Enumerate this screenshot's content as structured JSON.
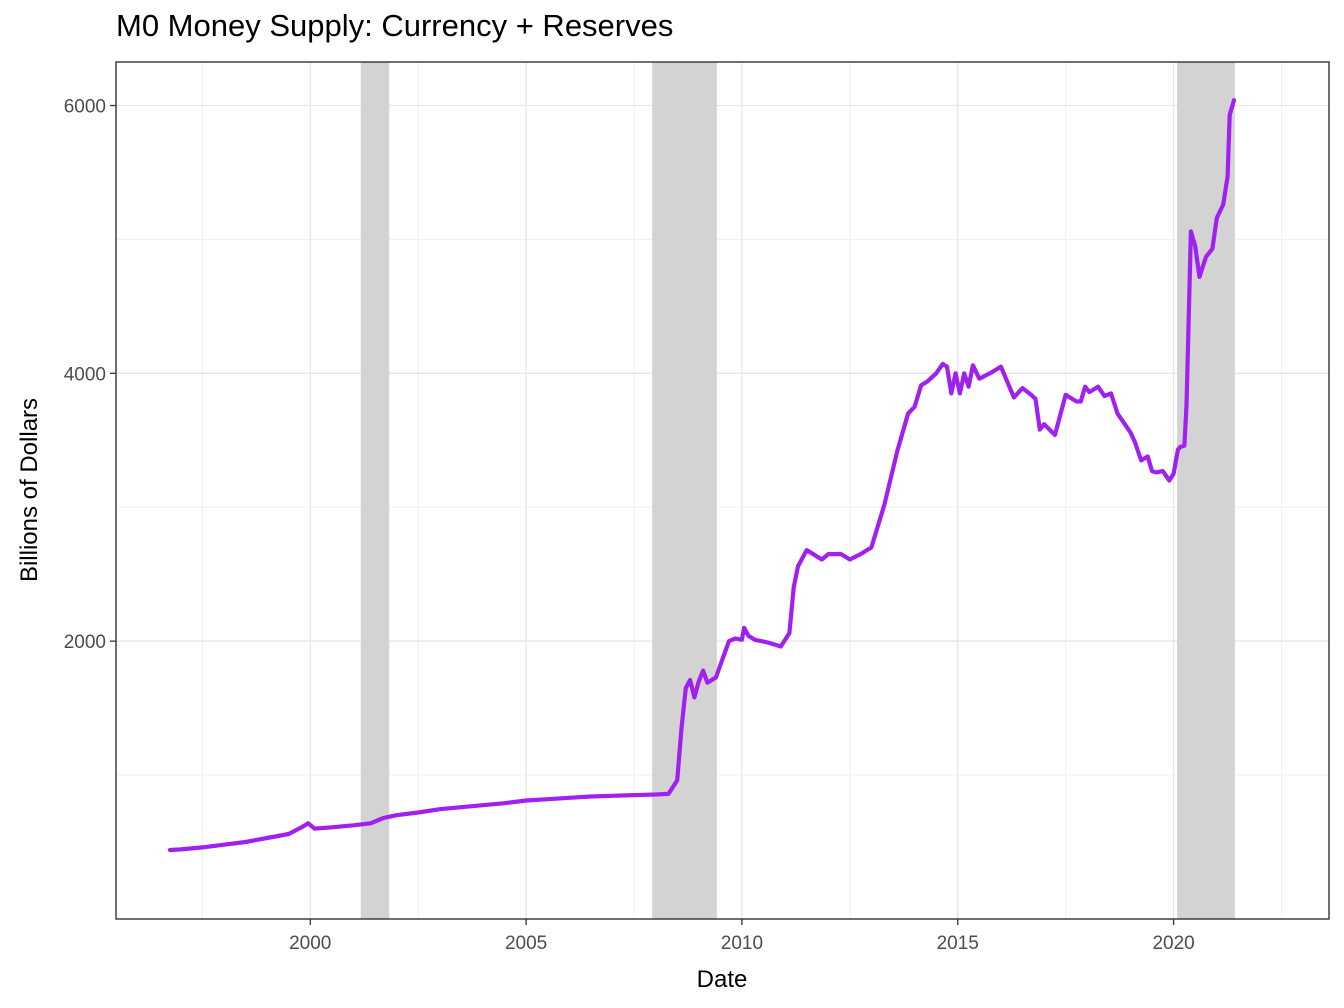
{
  "chart_data": {
    "type": "line",
    "title": "M0 Money Supply: Currency + Reserves",
    "xlabel": "Date",
    "ylabel": "Billions of Dollars",
    "xlim": [
      1995.5,
      2023.6
    ],
    "ylim": [
      -75,
      6325
    ],
    "x_ticks": [
      2000,
      2005,
      2010,
      2015,
      2020
    ],
    "y_ticks": [
      2000,
      4000,
      6000
    ],
    "x_tick_labels": [
      "2000",
      "2005",
      "2010",
      "2015",
      "2020"
    ],
    "y_tick_labels": [
      "2000",
      "4000",
      "6000"
    ],
    "grid": true,
    "line_color": "#a020f0",
    "recession_color": "#d3d3d3",
    "recessions": [
      {
        "start": 2001.17,
        "end": 2001.83
      },
      {
        "start": 2007.92,
        "end": 2009.42
      },
      {
        "start": 2020.08,
        "end": 2021.42
      }
    ],
    "series": [
      {
        "x": [
          1996.75,
          1997.0,
          1997.5,
          1998.0,
          1998.5,
          1999.0,
          1999.5,
          1999.8,
          1999.95,
          2000.1,
          2000.5,
          2001.0,
          2001.4,
          2001.7,
          2002.0,
          2002.5,
          2003.0,
          2003.5,
          2004.0,
          2004.5,
          2005.0,
          2005.5,
          2006.0,
          2006.5,
          2007.0,
          2007.5,
          2008.0,
          2008.3,
          2008.5,
          2008.6,
          2008.7,
          2008.8,
          2008.9,
          2009.0,
          2009.1,
          2009.2,
          2009.4,
          2009.5,
          2009.7,
          2009.85,
          2010.0,
          2010.05,
          2010.15,
          2010.3,
          2010.6,
          2010.9,
          2011.1,
          2011.2,
          2011.3,
          2011.5,
          2011.7,
          2011.85,
          2012.0,
          2012.3,
          2012.5,
          2012.75,
          2013.0,
          2013.3,
          2013.6,
          2013.85,
          2014.0,
          2014.15,
          2014.3,
          2014.5,
          2014.65,
          2014.75,
          2014.85,
          2014.95,
          2015.05,
          2015.15,
          2015.25,
          2015.35,
          2015.5,
          2015.8,
          2016.0,
          2016.3,
          2016.5,
          2016.7,
          2016.8,
          2016.9,
          2017.0,
          2017.25,
          2017.5,
          2017.75,
          2017.85,
          2017.95,
          2018.05,
          2018.25,
          2018.4,
          2018.55,
          2018.7,
          2019.0,
          2019.1,
          2019.25,
          2019.4,
          2019.5,
          2019.6,
          2019.75,
          2019.9,
          2020.0,
          2020.1,
          2020.15,
          2020.25,
          2020.3,
          2020.4,
          2020.5,
          2020.6,
          2020.75,
          2020.9,
          2021.0,
          2021.15,
          2021.25,
          2021.3,
          2021.4
        ],
        "y": [
          440,
          445,
          460,
          480,
          500,
          530,
          560,
          610,
          640,
          600,
          610,
          625,
          640,
          680,
          700,
          720,
          745,
          760,
          775,
          790,
          810,
          820,
          830,
          840,
          845,
          850,
          855,
          860,
          960,
          1350,
          1650,
          1710,
          1580,
          1700,
          1780,
          1690,
          1730,
          1820,
          2000,
          2020,
          2010,
          2100,
          2040,
          2010,
          1990,
          1960,
          2060,
          2400,
          2560,
          2680,
          2640,
          2610,
          2650,
          2650,
          2610,
          2650,
          2700,
          3020,
          3420,
          3700,
          3750,
          3910,
          3940,
          4000,
          4070,
          4050,
          3850,
          4000,
          3850,
          4000,
          3900,
          4060,
          3960,
          4010,
          4050,
          3820,
          3890,
          3840,
          3810,
          3580,
          3620,
          3540,
          3840,
          3790,
          3790,
          3900,
          3860,
          3900,
          3830,
          3850,
          3700,
          3560,
          3490,
          3350,
          3380,
          3270,
          3260,
          3270,
          3200,
          3250,
          3430,
          3450,
          3460,
          3760,
          5060,
          4950,
          4720,
          4870,
          4930,
          5160,
          5260,
          5470,
          5930,
          6040
        ]
      }
    ]
  }
}
